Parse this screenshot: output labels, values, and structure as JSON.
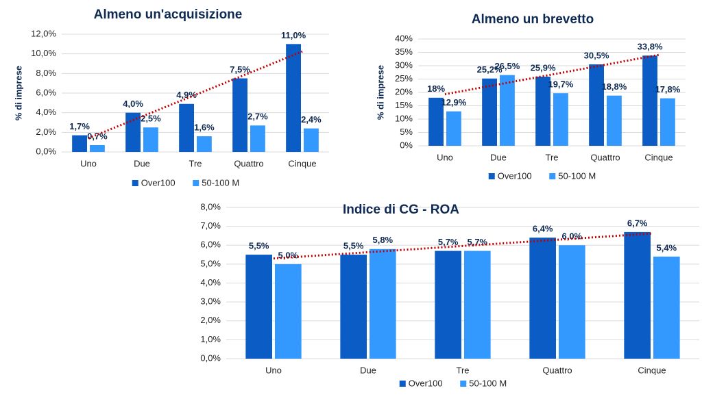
{
  "chart_data": [
    {
      "type": "bar",
      "title": "Almeno un'acquisizione",
      "y_label": "% di imprese",
      "categories": [
        "Uno",
        "Due",
        "Tre",
        "Quattro",
        "Cinque"
      ],
      "series": [
        {
          "name": "Over100",
          "color": "#0b5cc4",
          "values": [
            1.7,
            4.0,
            4.9,
            7.5,
            11.0
          ],
          "value_labels": [
            "1,7%",
            "4,0%",
            "4,9%",
            "7,5%",
            "11,0%"
          ]
        },
        {
          "name": "50-100 M",
          "color": "#3399ff",
          "values": [
            0.7,
            2.5,
            1.6,
            2.7,
            2.4
          ],
          "value_labels": [
            "0,7%",
            "2,5%",
            "1,6%",
            "2,7%",
            "2,4%"
          ]
        }
      ],
      "ylim": [
        0,
        12
      ],
      "yticks": [
        {
          "value": 0,
          "label": "0,0%"
        },
        {
          "value": 2,
          "label": "2,0%"
        },
        {
          "value": 4,
          "label": "4,0%"
        },
        {
          "value": 6,
          "label": "6,0%"
        },
        {
          "value": 8,
          "label": "8,0%"
        },
        {
          "value": 10,
          "label": "10,0%"
        },
        {
          "value": 12,
          "label": "12,0%"
        }
      ],
      "grid": true,
      "legend": "bottom",
      "trendline_color": "#c00000"
    },
    {
      "type": "bar",
      "title": "Almeno un brevetto",
      "y_label": "% di imprese",
      "categories": [
        "Uno",
        "Due",
        "Tre",
        "Quattro",
        "Cinque"
      ],
      "series": [
        {
          "name": "Over100",
          "color": "#0b5cc4",
          "values": [
            18,
            25.2,
            25.9,
            30.5,
            33.8
          ],
          "value_labels": [
            "18%",
            "25,2%",
            "25,9%",
            "30,5%",
            "33,8%"
          ]
        },
        {
          "name": "50-100 M",
          "color": "#3399ff",
          "values": [
            12.9,
            26.5,
            19.7,
            18.8,
            17.8
          ],
          "value_labels": [
            "12,9%",
            "26,5%",
            "19,7%",
            "18,8%",
            "17,8%"
          ]
        }
      ],
      "ylim": [
        0,
        40
      ],
      "yticks": [
        {
          "value": 0,
          "label": "0%"
        },
        {
          "value": 5,
          "label": "5%"
        },
        {
          "value": 10,
          "label": "10%"
        },
        {
          "value": 15,
          "label": "15%"
        },
        {
          "value": 20,
          "label": "20%"
        },
        {
          "value": 25,
          "label": "25%"
        },
        {
          "value": 30,
          "label": "30%"
        },
        {
          "value": 35,
          "label": "35%"
        },
        {
          "value": 40,
          "label": "40%"
        }
      ],
      "grid": true,
      "legend": "bottom",
      "trendline_color": "#c00000"
    },
    {
      "type": "bar",
      "title": "Indice di CG - ROA",
      "categories": [
        "Uno",
        "Due",
        "Tre",
        "Quattro",
        "Cinque"
      ],
      "series": [
        {
          "name": "Over100",
          "color": "#0b5cc4",
          "values": [
            5.5,
            5.5,
            5.7,
            6.4,
            6.7
          ],
          "value_labels": [
            "5,5%",
            "5,5%",
            "5,7%",
            "6,4%",
            "6,7%"
          ]
        },
        {
          "name": "50-100 M",
          "color": "#3399ff",
          "values": [
            5.0,
            5.8,
            5.7,
            6.0,
            5.4
          ],
          "value_labels": [
            "5,0%",
            "5,8%",
            "5,7%",
            "6,0%",
            "5,4%"
          ]
        }
      ],
      "ylim": [
        0,
        8
      ],
      "yticks": [
        {
          "value": 0,
          "label": "0,0%"
        },
        {
          "value": 1,
          "label": "1,0%"
        },
        {
          "value": 2,
          "label": "2,0%"
        },
        {
          "value": 3,
          "label": "3,0%"
        },
        {
          "value": 4,
          "label": "4,0%"
        },
        {
          "value": 5,
          "label": "5,0%"
        },
        {
          "value": 6,
          "label": "6,0%"
        },
        {
          "value": 7,
          "label": "7,0%"
        },
        {
          "value": 8,
          "label": "8,0%"
        }
      ],
      "grid": true,
      "legend": "bottom",
      "trendline_color": "#c00000"
    }
  ]
}
